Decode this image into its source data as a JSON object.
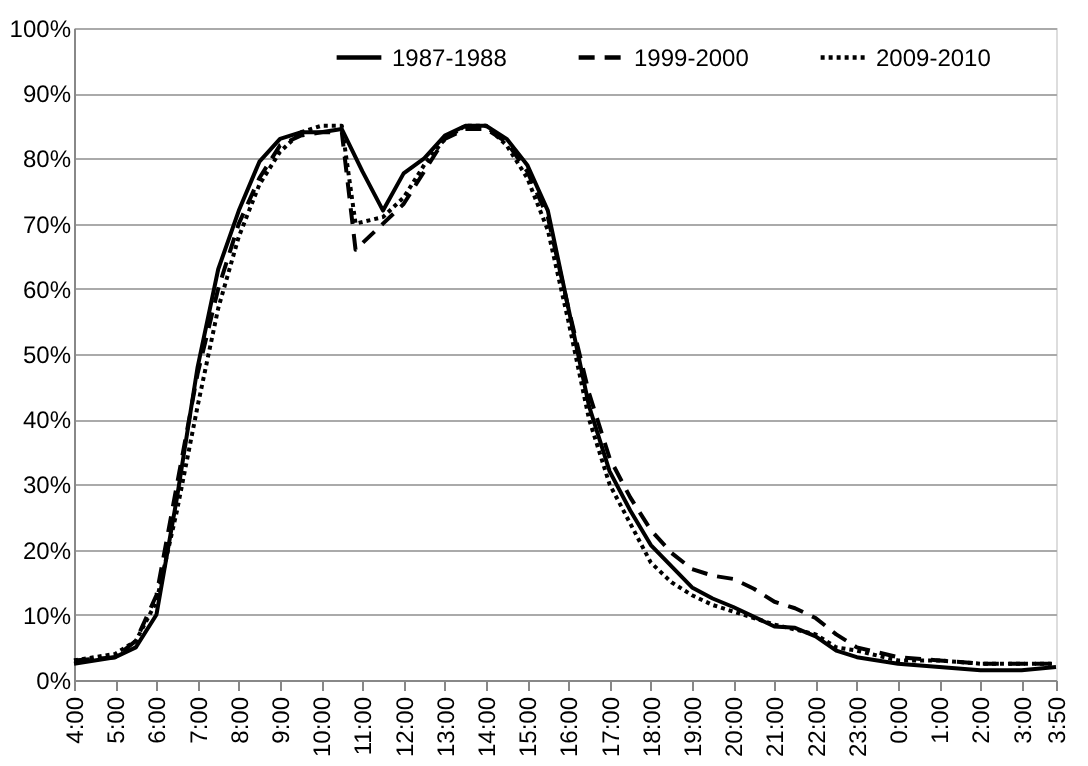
{
  "chart_data": {
    "type": "line",
    "xlim": [
      "2000-01-01T04:00",
      "2000-01-02T03:50"
    ],
    "ylim": [
      0,
      100
    ],
    "xticks": [
      {
        "value": "2000-01-01T04:00",
        "label": "4:00"
      },
      {
        "value": "2000-01-01T05:00",
        "label": "5:00"
      },
      {
        "value": "2000-01-01T06:00",
        "label": "6:00"
      },
      {
        "value": "2000-01-01T07:00",
        "label": "7:00"
      },
      {
        "value": "2000-01-01T08:00",
        "label": "8:00"
      },
      {
        "value": "2000-01-01T09:00",
        "label": "9:00"
      },
      {
        "value": "2000-01-01T10:00",
        "label": "10:00"
      },
      {
        "value": "2000-01-01T11:00",
        "label": "11:00"
      },
      {
        "value": "2000-01-01T12:00",
        "label": "12:00"
      },
      {
        "value": "2000-01-01T13:00",
        "label": "13:00"
      },
      {
        "value": "2000-01-01T14:00",
        "label": "14:00"
      },
      {
        "value": "2000-01-01T15:00",
        "label": "15:00"
      },
      {
        "value": "2000-01-01T16:00",
        "label": "16:00"
      },
      {
        "value": "2000-01-01T17:00",
        "label": "17:00"
      },
      {
        "value": "2000-01-01T18:00",
        "label": "18:00"
      },
      {
        "value": "2000-01-01T19:00",
        "label": "19:00"
      },
      {
        "value": "2000-01-01T20:00",
        "label": "20:00"
      },
      {
        "value": "2000-01-01T21:00",
        "label": "21:00"
      },
      {
        "value": "2000-01-01T22:00",
        "label": "22:00"
      },
      {
        "value": "2000-01-01T23:00",
        "label": "23:00"
      },
      {
        "value": "2000-01-02T00:00",
        "label": "0:00"
      },
      {
        "value": "2000-01-02T01:00",
        "label": "1:00"
      },
      {
        "value": "2000-01-02T02:00",
        "label": "2:00"
      },
      {
        "value": "2000-01-02T03:00",
        "label": "3:00"
      },
      {
        "value": "2000-01-02T03:50",
        "label": "3:50"
      }
    ],
    "yticks": [
      {
        "value": 0,
        "label": "0%"
      },
      {
        "value": 10,
        "label": "10%"
      },
      {
        "value": 20,
        "label": "20%"
      },
      {
        "value": 30,
        "label": "30%"
      },
      {
        "value": 40,
        "label": "40%"
      },
      {
        "value": 50,
        "label": "50%"
      },
      {
        "value": 60,
        "label": "60%"
      },
      {
        "value": 70,
        "label": "70%"
      },
      {
        "value": 80,
        "label": "80%"
      },
      {
        "value": 90,
        "label": "90%"
      },
      {
        "value": 100,
        "label": "100%"
      }
    ],
    "grid": "y",
    "legend": "top",
    "marker": "none",
    "series": [
      {
        "name": "1987-1988",
        "color": "#000000",
        "line_style": "solid",
        "x": [
          "2000-01-01T04:00",
          "2000-01-01T05:00",
          "2000-01-01T05:30",
          "2000-01-01T06:00",
          "2000-01-01T06:30",
          "2000-01-01T07:00",
          "2000-01-01T07:30",
          "2000-01-01T08:00",
          "2000-01-01T08:30",
          "2000-01-01T09:00",
          "2000-01-01T09:30",
          "2000-01-01T10:00",
          "2000-01-01T10:30",
          "2000-01-01T11:00",
          "2000-01-01T11:30",
          "2000-01-01T12:00",
          "2000-01-01T12:30",
          "2000-01-01T13:00",
          "2000-01-01T13:30",
          "2000-01-01T14:00",
          "2000-01-01T14:30",
          "2000-01-01T15:00",
          "2000-01-01T15:30",
          "2000-01-01T16:00",
          "2000-01-01T16:30",
          "2000-01-01T17:00",
          "2000-01-01T17:30",
          "2000-01-01T18:00",
          "2000-01-01T19:00",
          "2000-01-01T19:30",
          "2000-01-01T20:00",
          "2000-01-01T21:00",
          "2000-01-01T21:30",
          "2000-01-01T22:00",
          "2000-01-01T22:30",
          "2000-01-01T23:00",
          "2000-01-02T00:00",
          "2000-01-02T01:00",
          "2000-01-02T02:00",
          "2000-01-02T03:00",
          "2000-01-02T03:50"
        ],
        "values": [
          2.5,
          3.5,
          5,
          10,
          28,
          48,
          63,
          72,
          79.5,
          83,
          84,
          84,
          84.5,
          78,
          72,
          77.7,
          80,
          83.5,
          85,
          85,
          83,
          79,
          72,
          57,
          42,
          32,
          26,
          20.7,
          14.2,
          12.5,
          11.2,
          8.2,
          8,
          6.7,
          4.5,
          3.5,
          2.5,
          2,
          1.5,
          1.5,
          2
        ]
      },
      {
        "name": "1999-2000",
        "color": "#000000",
        "line_style": "dashed",
        "x": [
          "2000-01-01T04:00",
          "2000-01-01T05:00",
          "2000-01-01T05:30",
          "2000-01-01T06:00",
          "2000-01-01T06:30",
          "2000-01-01T07:00",
          "2000-01-01T07:30",
          "2000-01-01T08:00",
          "2000-01-01T08:30",
          "2000-01-01T09:00",
          "2000-01-01T09:30",
          "2000-01-01T10:00",
          "2000-01-01T10:30",
          "2000-01-01T10:50",
          "2000-01-01T11:30",
          "2000-01-01T12:00",
          "2000-01-01T12:30",
          "2000-01-01T13:00",
          "2000-01-01T13:30",
          "2000-01-01T14:00",
          "2000-01-01T14:30",
          "2000-01-01T15:00",
          "2000-01-01T15:30",
          "2000-01-01T16:00",
          "2000-01-01T16:30",
          "2000-01-01T17:00",
          "2000-01-01T17:30",
          "2000-01-01T18:00",
          "2000-01-01T18:30",
          "2000-01-01T19:00",
          "2000-01-01T19:30",
          "2000-01-01T20:00",
          "2000-01-01T20:30",
          "2000-01-01T21:00",
          "2000-01-01T21:30",
          "2000-01-01T22:00",
          "2000-01-01T22:30",
          "2000-01-01T23:00",
          "2000-01-02T00:00",
          "2000-01-02T01:00",
          "2000-01-02T02:00",
          "2000-01-02T03:00",
          "2000-01-02T03:50"
        ],
        "values": [
          3,
          3.5,
          6,
          13,
          30,
          47,
          60,
          70,
          77,
          82,
          83.5,
          84,
          84,
          66,
          70,
          73,
          78,
          83,
          84.5,
          84.5,
          82.5,
          78,
          71,
          57,
          44,
          34,
          28,
          23,
          19.5,
          17,
          16,
          15.5,
          14,
          12,
          11,
          9.5,
          7,
          5,
          3.5,
          3,
          2.5,
          2.5,
          2.5
        ]
      },
      {
        "name": "2009-2010",
        "color": "#000000",
        "line_style": "dotted",
        "x": [
          "2000-01-01T04:00",
          "2000-01-01T05:00",
          "2000-01-01T05:30",
          "2000-01-01T06:00",
          "2000-01-01T06:30",
          "2000-01-01T07:00",
          "2000-01-01T07:30",
          "2000-01-01T08:00",
          "2000-01-01T08:30",
          "2000-01-01T09:00",
          "2000-01-01T09:30",
          "2000-01-01T10:00",
          "2000-01-01T10:30",
          "2000-01-01T10:50",
          "2000-01-01T11:30",
          "2000-01-01T12:00",
          "2000-01-01T12:30",
          "2000-01-01T13:00",
          "2000-01-01T13:30",
          "2000-01-01T14:00",
          "2000-01-01T14:30",
          "2000-01-01T15:00",
          "2000-01-01T15:30",
          "2000-01-01T16:00",
          "2000-01-01T16:30",
          "2000-01-01T17:00",
          "2000-01-01T17:30",
          "2000-01-01T18:00",
          "2000-01-01T18:30",
          "2000-01-01T19:00",
          "2000-01-01T19:30",
          "2000-01-01T20:00",
          "2000-01-01T21:00",
          "2000-01-01T22:00",
          "2000-01-01T22:30",
          "2000-01-01T23:00",
          "2000-01-02T00:00",
          "2000-01-02T01:00",
          "2000-01-02T02:00",
          "2000-01-02T03:00",
          "2000-01-02T03:50"
        ],
        "values": [
          3,
          4,
          6,
          12,
          26,
          42,
          57,
          68,
          76,
          81,
          84,
          85,
          85,
          70,
          71,
          74,
          79,
          83,
          85,
          85,
          82,
          77,
          69,
          55,
          40,
          30,
          24,
          18,
          15,
          13,
          11.5,
          10.5,
          8.5,
          7,
          5,
          4.5,
          3,
          3,
          2.5,
          2.5,
          2.5
        ]
      }
    ]
  }
}
